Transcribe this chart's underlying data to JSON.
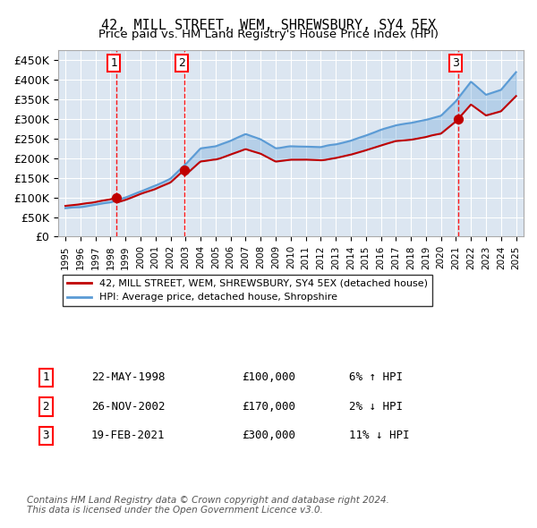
{
  "title": "42, MILL STREET, WEM, SHREWSBURY, SY4 5EX",
  "subtitle": "Price paid vs. HM Land Registry's House Price Index (HPI)",
  "legend_label_red": "42, MILL STREET, WEM, SHREWSBURY, SY4 5EX (detached house)",
  "legend_label_blue": "HPI: Average price, detached house, Shropshire",
  "footer": "Contains HM Land Registry data © Crown copyright and database right 2024.\nThis data is licensed under the Open Government Licence v3.0.",
  "sales": [
    {
      "label": "1",
      "date": "22-MAY-1998",
      "price": 100000,
      "hpi_rel": "6% ↑ HPI",
      "year_x": 1998.38
    },
    {
      "label": "2",
      "date": "26-NOV-2002",
      "price": 170000,
      "hpi_rel": "2% ↓ HPI",
      "year_x": 2002.9
    },
    {
      "label": "3",
      "date": "19-FEB-2021",
      "price": 300000,
      "hpi_rel": "11% ↓ HPI",
      "year_x": 2021.13
    }
  ],
  "ylim": [
    0,
    475000
  ],
  "yticks": [
    0,
    50000,
    100000,
    150000,
    200000,
    250000,
    300000,
    350000,
    400000,
    450000
  ],
  "ytick_labels": [
    "£0",
    "£50K",
    "£100K",
    "£150K",
    "£200K",
    "£250K",
    "£300K",
    "£350K",
    "£400K",
    "£450K"
  ],
  "xlim_start": 1994.5,
  "xlim_end": 2025.5,
  "hpi_color": "#5b9bd5",
  "price_color": "#c00000",
  "shade_color": "#dce6f1",
  "grid_color": "#ffffff",
  "bg_color": "#dce6f1",
  "dashed_line_color": "#ff0000",
  "marker_color": "#c00000"
}
